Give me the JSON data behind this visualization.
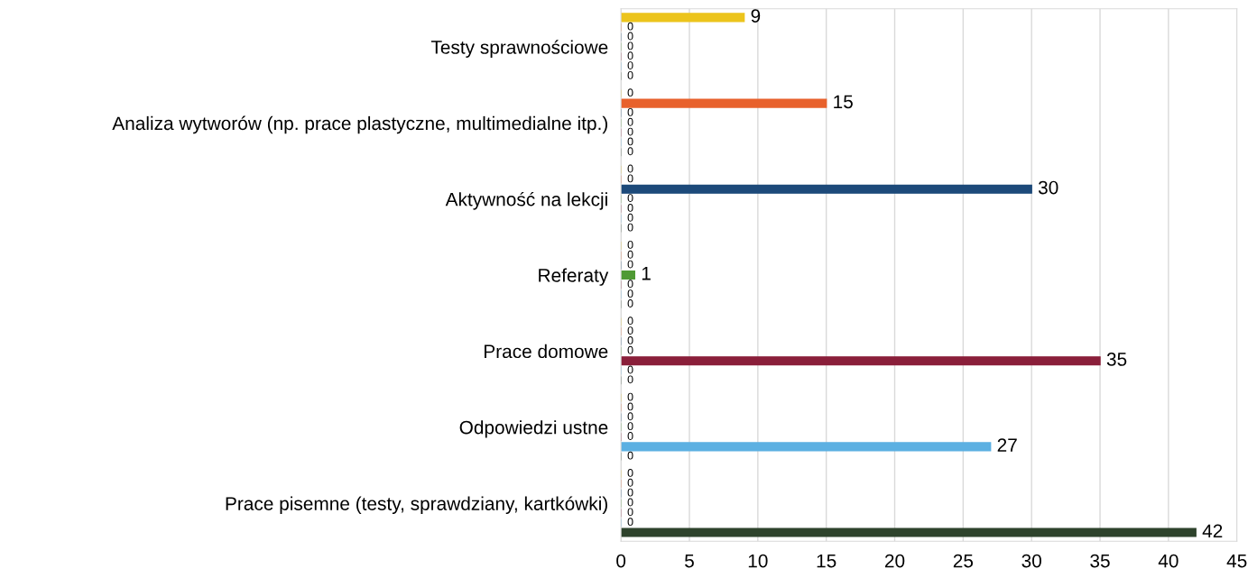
{
  "chart_data": {
    "type": "bar",
    "orientation": "horizontal",
    "categories": [
      "Testy sprawnościowe",
      "Analiza wytworów (np. prace plastyczne, multimedialne itp.)",
      "Aktywność na lekcji",
      "Referaty",
      "Prace domowe",
      "Odpowiedzi ustne",
      "Prace pisemne (testy, sprawdziany, kartkówki)"
    ],
    "series": [
      {
        "color": "#ecc41c",
        "values": [
          9,
          0,
          0,
          0,
          0,
          0,
          0
        ]
      },
      {
        "color": "#e8612c",
        "values": [
          0,
          15,
          0,
          0,
          0,
          0,
          0
        ]
      },
      {
        "color": "#1d4a7a",
        "values": [
          0,
          0,
          30,
          0,
          0,
          0,
          0
        ]
      },
      {
        "color": "#4f9a34",
        "values": [
          0,
          0,
          0,
          1,
          0,
          0,
          0
        ]
      },
      {
        "color": "#8a1f3a",
        "values": [
          0,
          0,
          0,
          0,
          35,
          0,
          0
        ]
      },
      {
        "color": "#5cb0e2",
        "values": [
          0,
          0,
          0,
          0,
          0,
          27,
          0
        ]
      },
      {
        "color": "#2e432c",
        "values": [
          0,
          0,
          0,
          0,
          0,
          0,
          42
        ]
      }
    ],
    "xlim": [
      0,
      45
    ],
    "xticks": [
      0,
      5,
      10,
      15,
      20,
      25,
      30,
      35,
      40,
      45
    ],
    "grid": "x",
    "data_labels": true
  }
}
